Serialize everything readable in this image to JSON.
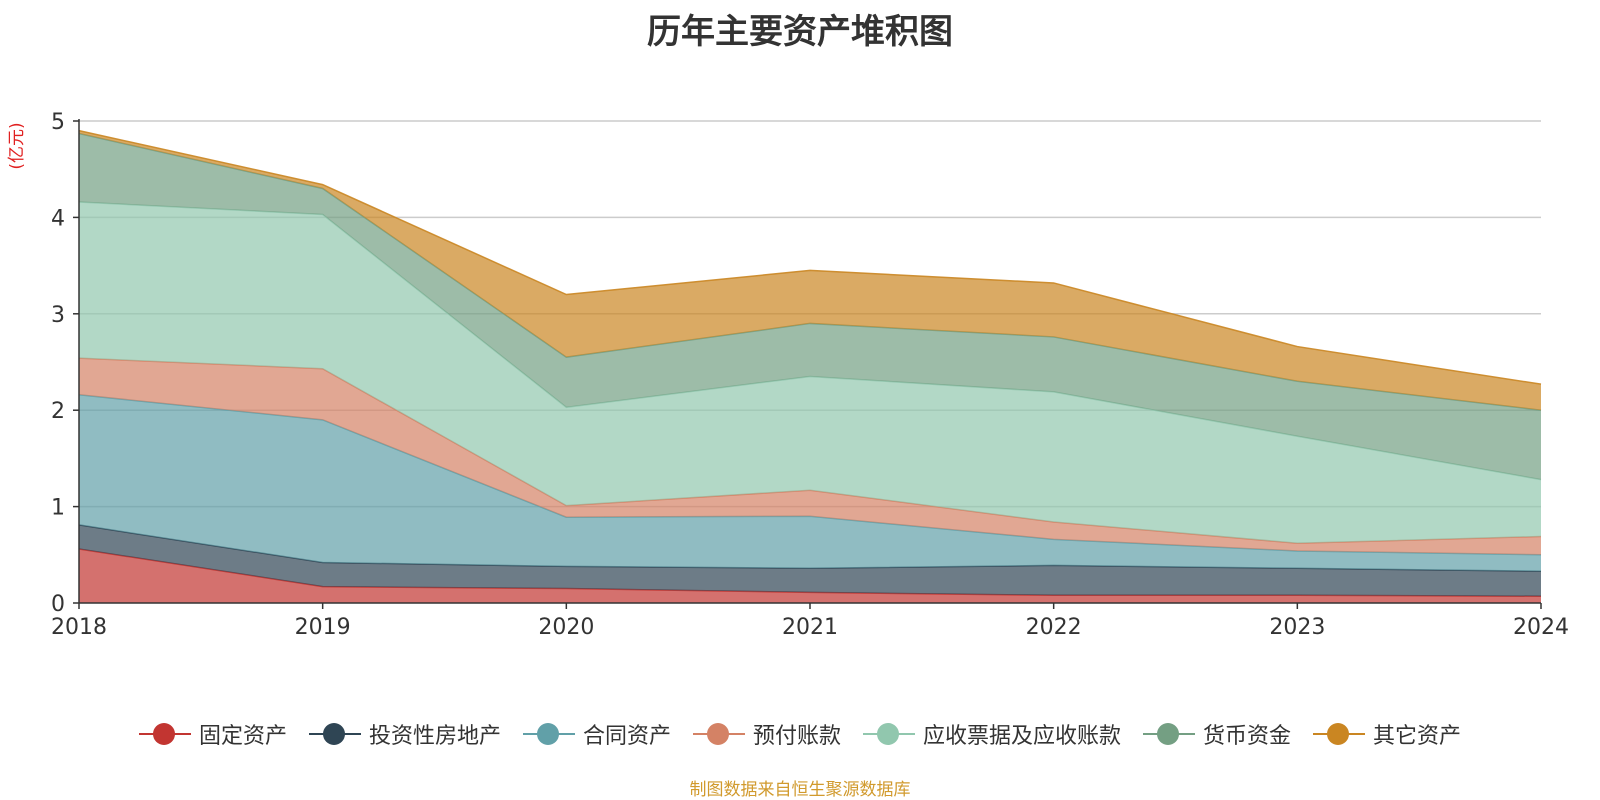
{
  "chart_data": {
    "type": "area",
    "stacked": true,
    "title": "历年主要资产堆积图",
    "unit": "(亿元)",
    "x": [
      "2018",
      "2019",
      "2020",
      "2021",
      "2022",
      "2023",
      "2024"
    ],
    "ylim": [
      0,
      5
    ],
    "yticks": [
      "0",
      "1",
      "2",
      "3",
      "4",
      "5"
    ],
    "grid": true,
    "legend_position": "bottom",
    "series": [
      {
        "name": "固定资产",
        "color": "#c23531",
        "values": [
          0.56,
          0.17,
          0.15,
          0.11,
          0.08,
          0.08,
          0.07
        ]
      },
      {
        "name": "投资性房地产",
        "color": "#2f4554",
        "values": [
          0.25,
          0.25,
          0.23,
          0.25,
          0.31,
          0.28,
          0.26
        ]
      },
      {
        "name": "合同资产",
        "color": "#61a0a8",
        "values": [
          1.35,
          1.48,
          0.51,
          0.54,
          0.27,
          0.18,
          0.17
        ]
      },
      {
        "name": "预付账款",
        "color": "#d48265",
        "values": [
          0.38,
          0.53,
          0.12,
          0.27,
          0.18,
          0.08,
          0.19
        ]
      },
      {
        "name": "应收票据及应收账款",
        "color": "#91c7ae",
        "values": [
          1.62,
          1.6,
          1.02,
          1.18,
          1.35,
          1.11,
          0.59
        ]
      },
      {
        "name": "货币资金",
        "color": "#749f83",
        "values": [
          0.71,
          0.27,
          0.52,
          0.55,
          0.57,
          0.57,
          0.72
        ]
      },
      {
        "name": "其它资产",
        "color": "#ca8622",
        "values": [
          0.03,
          0.04,
          0.65,
          0.55,
          0.56,
          0.36,
          0.27
        ]
      }
    ]
  },
  "source_text": "制图数据来自恒生聚源数据库",
  "unit_color": "#e02020",
  "source_color": "#d19a2d"
}
